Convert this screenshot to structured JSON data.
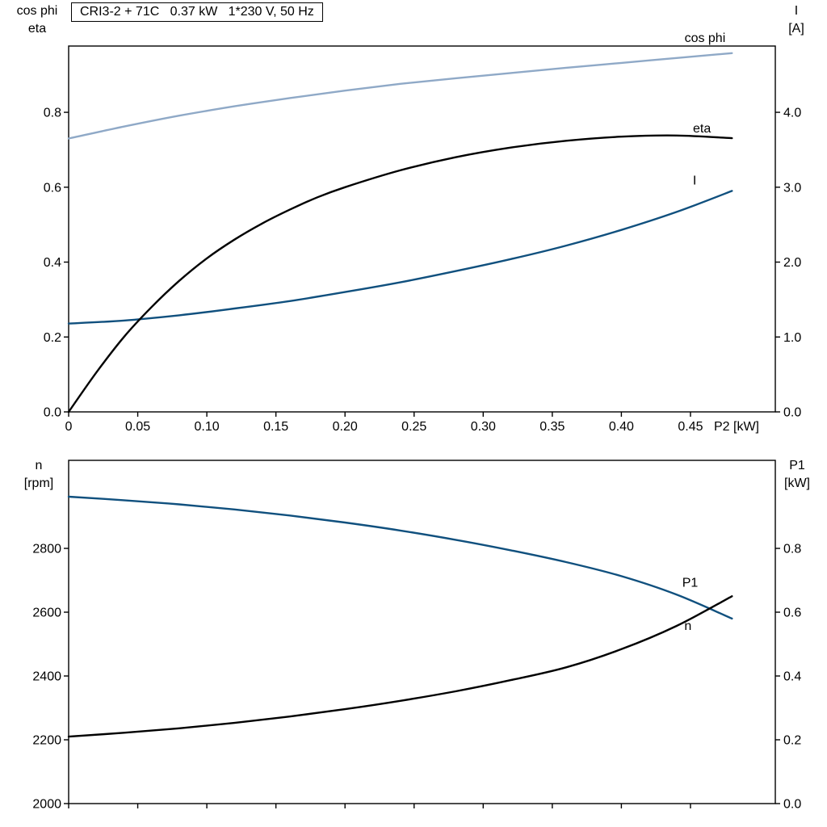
{
  "title_box": {
    "text": "CRI3-2 + 71C   0.37 kW   1*230 V, 50 Hz"
  },
  "axis_titles": {
    "top_left": [
      "cos phi",
      "eta"
    ],
    "top_right": [
      "I",
      "[A]"
    ],
    "bottom_left": [
      "n",
      "[rpm]"
    ],
    "bottom_right": [
      "P1",
      "[kW]"
    ]
  },
  "colors": {
    "cos_phi": "#8fa9c7",
    "current_blue": "#10507e",
    "black": "#000000"
  },
  "chart_data": [
    {
      "id": "top",
      "type": "line",
      "title": "CRI3-2 + 71C 0.37 kW 1*230 V, 50 Hz",
      "xlabel": "P2 [kW]",
      "xlim": [
        0,
        0.5114
      ],
      "x_ticks": [
        0,
        0.05,
        0.1,
        0.15,
        0.2,
        0.25,
        0.3,
        0.35,
        0.4,
        0.45
      ],
      "x_tick_labels": [
        "0",
        "0.05",
        "0.10",
        "0.15",
        "0.20",
        "0.25",
        "0.30",
        "0.35",
        "0.40",
        "0.45"
      ],
      "left_axis": {
        "label": "cos phi / eta",
        "lim": [
          0,
          0.977
        ],
        "ticks": [
          0,
          0.2,
          0.4,
          0.6,
          0.8
        ],
        "tick_labels": [
          "0.0",
          "0.2",
          "0.4",
          "0.6",
          "0.8"
        ]
      },
      "right_axis": {
        "label": "I [A]",
        "lim": [
          0,
          4.885
        ],
        "ticks": [
          0,
          1,
          2,
          3,
          4
        ],
        "tick_labels": [
          "0.0",
          "1.0",
          "2.0",
          "3.0",
          "4.0"
        ]
      },
      "grid": false,
      "series": [
        {
          "id": "cos-phi",
          "name": "cos phi",
          "axis": "left",
          "color": "#8fa9c7",
          "x": [
            0,
            0.04,
            0.08,
            0.12,
            0.16,
            0.2,
            0.24,
            0.28,
            0.32,
            0.36,
            0.4,
            0.44,
            0.48
          ],
          "y": [
            0.73,
            0.762,
            0.791,
            0.816,
            0.838,
            0.858,
            0.876,
            0.891,
            0.905,
            0.919,
            0.932,
            0.945,
            0.958
          ],
          "label_dx": -8,
          "label_dy": -14
        },
        {
          "id": "current",
          "name": "I",
          "axis": "right",
          "color": "#10507e",
          "x": [
            0,
            0.04,
            0.08,
            0.12,
            0.16,
            0.2,
            0.24,
            0.28,
            0.32,
            0.36,
            0.4,
            0.44,
            0.48
          ],
          "y": [
            1.18,
            1.22,
            1.29,
            1.38,
            1.48,
            1.6,
            1.73,
            1.88,
            2.04,
            2.22,
            2.43,
            2.67,
            2.95
          ],
          "label_dx": -44,
          "label_dy": -8
        },
        {
          "id": "eta",
          "name": "eta",
          "axis": "left",
          "color": "#000000",
          "x": [
            0,
            0.02,
            0.04,
            0.06,
            0.08,
            0.1,
            0.12,
            0.14,
            0.16,
            0.18,
            0.2,
            0.24,
            0.28,
            0.32,
            0.36,
            0.4,
            0.44,
            0.48
          ],
          "y": [
            0,
            0.105,
            0.2,
            0.28,
            0.35,
            0.41,
            0.46,
            0.503,
            0.54,
            0.573,
            0.6,
            0.645,
            0.68,
            0.706,
            0.724,
            0.735,
            0.738,
            0.731
          ],
          "label_dx": -26,
          "label_dy": -7
        }
      ]
    },
    {
      "id": "bottom",
      "type": "line",
      "xlabel": "",
      "xlim": [
        0,
        0.5114
      ],
      "x_ticks": [
        0,
        0.05,
        0.1,
        0.15,
        0.2,
        0.25,
        0.3,
        0.35,
        0.4,
        0.45
      ],
      "x_tick_labels": [],
      "left_axis": {
        "label": "n [rpm]",
        "lim": [
          2000,
          3076
        ],
        "ticks": [
          2000,
          2200,
          2400,
          2600,
          2800
        ],
        "tick_labels": [
          "2000",
          "2200",
          "2400",
          "2600",
          "2800"
        ]
      },
      "right_axis": {
        "label": "P1 [kW]",
        "lim": [
          0,
          1.076
        ],
        "ticks": [
          0,
          0.2,
          0.4,
          0.6,
          0.8
        ],
        "tick_labels": [
          "0.0",
          "0.2",
          "0.4",
          "0.6",
          "0.8"
        ]
      },
      "grid": false,
      "series": [
        {
          "id": "speed",
          "name": "n",
          "axis": "left",
          "color": "#10507e",
          "x": [
            0,
            0.04,
            0.08,
            0.12,
            0.16,
            0.2,
            0.24,
            0.28,
            0.32,
            0.36,
            0.4,
            0.44,
            0.48
          ],
          "y": [
            2962,
            2951,
            2938,
            2922,
            2903,
            2881,
            2856,
            2827,
            2794,
            2757,
            2713,
            2655,
            2580
          ],
          "label_dx": -50,
          "label_dy": 14
        },
        {
          "id": "p1",
          "name": "P1",
          "axis": "right",
          "color": "#000000",
          "x": [
            0,
            0.04,
            0.08,
            0.12,
            0.16,
            0.2,
            0.24,
            0.28,
            0.32,
            0.36,
            0.4,
            0.44,
            0.48
          ],
          "y": [
            0.21,
            0.222,
            0.236,
            0.253,
            0.273,
            0.296,
            0.322,
            0.352,
            0.387,
            0.427,
            0.484,
            0.557,
            0.65
          ],
          "label_dx": -42,
          "label_dy": -12
        }
      ]
    }
  ]
}
